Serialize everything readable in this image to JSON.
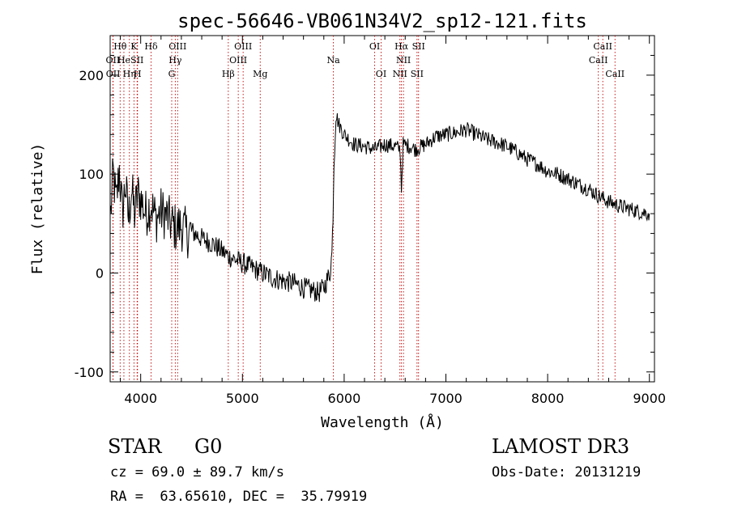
{
  "chart_data": {
    "type": "line",
    "title": "spec-56646-VB061N34V2_sp12-121.fits",
    "xlabel": "Wavelength (Å)",
    "ylabel": "Flux (relative)",
    "xlim": [
      3700,
      9050
    ],
    "ylim": [
      -110,
      240
    ],
    "x_ticks": [
      4000,
      5000,
      6000,
      7000,
      8000,
      9000
    ],
    "y_ticks": [
      -100,
      0,
      100,
      200
    ],
    "grid": false,
    "series": [
      {
        "name": "flux",
        "x": [
          3705,
          3730,
          3760,
          3790,
          3820,
          3850,
          3880,
          3910,
          3940,
          3970,
          4000,
          4050,
          4100,
          4150,
          4200,
          4250,
          4300,
          4350,
          4400,
          4450,
          4500,
          4600,
          4700,
          4800,
          4850,
          4900,
          5000,
          5100,
          5200,
          5300,
          5400,
          5500,
          5600,
          5700,
          5750,
          5800,
          5860,
          5880,
          5890,
          5900,
          5920,
          5950,
          6000,
          6050,
          6100,
          6200,
          6300,
          6400,
          6500,
          6550,
          6563,
          6580,
          6650,
          6700,
          6800,
          6900,
          7000,
          7100,
          7200,
          7300,
          7400,
          7500,
          7600,
          7700,
          7800,
          7900,
          8000,
          8100,
          8200,
          8300,
          8400,
          8500,
          8600,
          8700,
          8800,
          8900,
          9000
        ],
        "y": [
          60,
          100,
          70,
          105,
          60,
          90,
          55,
          85,
          60,
          80,
          75,
          60,
          70,
          55,
          62,
          58,
          50,
          45,
          48,
          40,
          42,
          35,
          30,
          22,
          18,
          15,
          10,
          5,
          0,
          -5,
          -8,
          -10,
          -15,
          -18,
          -20,
          -15,
          0,
          20,
          60,
          110,
          160,
          150,
          140,
          135,
          130,
          128,
          125,
          130,
          128,
          125,
          85,
          130,
          128,
          125,
          130,
          138,
          140,
          142,
          145,
          140,
          135,
          132,
          128,
          122,
          115,
          110,
          103,
          100,
          95,
          90,
          85,
          78,
          72,
          68,
          65,
          62,
          60
        ]
      }
    ],
    "lines": [
      {
        "name": "OII",
        "x": 3727,
        "row": 2
      },
      {
        "name": "OII",
        "x": 3729,
        "row": 3
      },
      {
        "name": "Hθ",
        "x": 3798,
        "row": 1
      },
      {
        "name": "He",
        "x": 3835,
        "row": 2
      },
      {
        "name": "Hη",
        "x": 3889,
        "row": 3
      },
      {
        "name": "K",
        "x": 3934,
        "row": 1
      },
      {
        "name": "SII",
        "x": 3965,
        "row": 2
      },
      {
        "name": "H",
        "x": 3969,
        "row": 3
      },
      {
        "name": "Hδ",
        "x": 4102,
        "row": 1
      },
      {
        "name": "OIII",
        "x": 4363,
        "row": 1
      },
      {
        "name": "Hγ",
        "x": 4340,
        "row": 2
      },
      {
        "name": "G",
        "x": 4305,
        "row": 3
      },
      {
        "name": "Hβ",
        "x": 4861,
        "row": 3
      },
      {
        "name": "OIII",
        "x": 4959,
        "row": 2
      },
      {
        "name": "OIII",
        "x": 5007,
        "row": 1
      },
      {
        "name": "Mg",
        "x": 5175,
        "row": 3
      },
      {
        "name": "Na",
        "x": 5894,
        "row": 2
      },
      {
        "name": "OI",
        "x": 6300,
        "row": 1
      },
      {
        "name": "OI",
        "x": 6363,
        "row": 3
      },
      {
        "name": "NII",
        "x": 6548,
        "row": 3
      },
      {
        "name": "Hα",
        "x": 6563,
        "row": 1
      },
      {
        "name": "NII",
        "x": 6583,
        "row": 2
      },
      {
        "name": "SII",
        "x": 6716,
        "row": 3
      },
      {
        "name": "SII",
        "x": 6731,
        "row": 1
      },
      {
        "name": "CaII",
        "x": 8498,
        "row": 2
      },
      {
        "name": "CaII",
        "x": 8542,
        "row": 1
      },
      {
        "name": "CaII",
        "x": 8662,
        "row": 3
      }
    ]
  },
  "info": {
    "class": "STAR",
    "subclass": "G0",
    "survey": "LAMOST DR3",
    "cz": "cz = 69.0 ± 89.7 km/s",
    "obs_date": "Obs-Date: 20131219",
    "coords": "RA =  63.65610, DEC =  35.79919"
  }
}
